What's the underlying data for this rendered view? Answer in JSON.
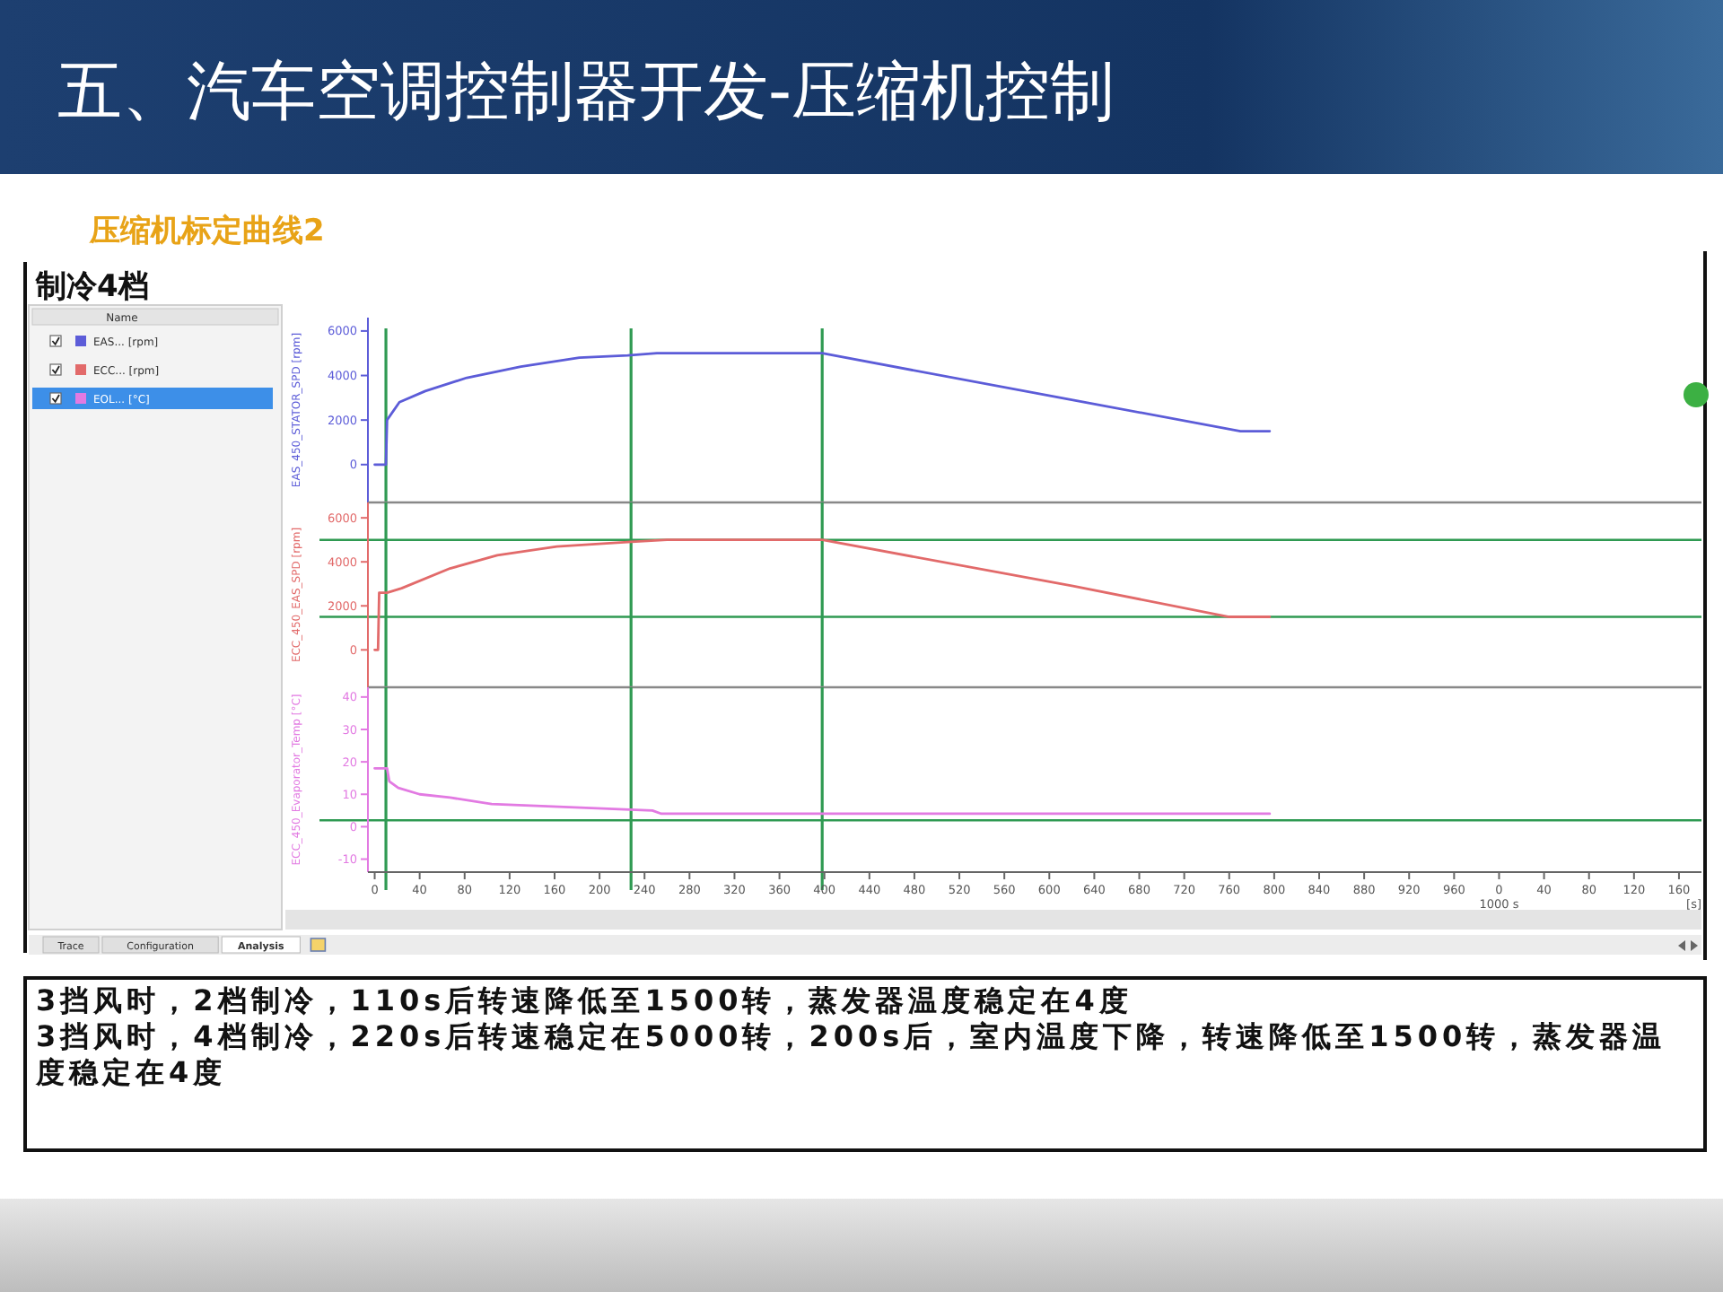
{
  "chart_data": [
    {
      "type": "line",
      "title": "五、汽车空调控制器开发-压缩机控制",
      "subtitle": "压缩机标定曲线2",
      "annotations": [
        "制冷4档"
      ],
      "legend_title": "Name",
      "legend": "left",
      "tick_labels": "y",
      "xlim": [
        -6,
        1180
      ],
      "ylim": [
        -1700,
        6600
      ],
      "yticks": [
        0,
        2000,
        4000,
        6000
      ],
      "ylabel": "EAS_450_STATOR_SPD [rpm]",
      "series": [
        {
          "name": "EAS... [rpm]",
          "color": "#5c5cd8",
          "x": [
            0,
            10,
            11,
            22,
            45,
            82,
            130,
            182,
            225,
            251,
            398,
            621,
            770,
            796
          ],
          "values": [
            0,
            0,
            2000,
            2800,
            3300,
            3900,
            4400,
            4800,
            4900,
            5000,
            5000,
            2900,
            1500,
            1500
          ]
        }
      ],
      "ref_lines": [
        {
          "axis": "x",
          "value": 10,
          "color": "#2f9a52"
        },
        {
          "axis": "x",
          "value": 228,
          "color": "#2f9a52"
        },
        {
          "axis": "x",
          "value": 398,
          "color": "#2f9a52"
        }
      ]
    },
    {
      "type": "line",
      "annotations": [
        "Trace",
        "Configuration",
        "Analysis"
      ],
      "legend": "left",
      "tick_labels": "y",
      "xlim": [
        -6,
        1180
      ],
      "ylim": [
        -1700,
        6700
      ],
      "yticks": [
        0,
        2000,
        4000,
        6000
      ],
      "ylabel": "ECC_450_EAS_SPD [rpm]",
      "series": [
        {
          "name": "ECC... [rpm]",
          "color": "#e26a6a",
          "x": [
            0,
            3,
            4,
            11,
            24,
            67,
            109,
            162,
            225,
            260,
            398,
            621,
            760,
            796
          ],
          "values": [
            0,
            0,
            2600,
            2600,
            2800,
            3700,
            4300,
            4700,
            4900,
            5000,
            5000,
            2900,
            1500,
            1500
          ]
        }
      ],
      "ref_lines": [
        {
          "axis": "x",
          "value": 10,
          "color": "#2f9a52"
        },
        {
          "axis": "x",
          "value": 228,
          "color": "#2f9a52"
        },
        {
          "axis": "x",
          "value": 398,
          "color": "#2f9a52"
        },
        {
          "axis": "y",
          "value": 5000,
          "color": "#2f9a52"
        },
        {
          "axis": "y",
          "value": 1500,
          "color": "#2f9a52"
        }
      ]
    },
    {
      "type": "line",
      "xlabel": "[s]",
      "x2label": "1000 s",
      "annotations": [
        "3挡风时，2档制冷，110s后转速降低至1500转，蒸发器温度稳定在4度",
        "3挡风时，4档制冷，220s后转速稳定在5000转，200s后，室内温度下降，转速降低至1500转，蒸发器温度稳定在4度"
      ],
      "legend": "left",
      "xlim": [
        -6,
        1180
      ],
      "xticks": [
        0,
        40,
        80,
        120,
        160,
        200,
        240,
        280,
        320,
        360,
        400,
        440,
        480,
        520,
        560,
        600,
        640,
        680,
        720,
        760,
        800,
        840,
        880,
        920,
        960
      ],
      "x2lim": [
        -1006,
        180
      ],
      "x2ticks": [
        0,
        40,
        80,
        120,
        160
      ],
      "ylim": [
        -14,
        43
      ],
      "yticks": [
        -10,
        0,
        10,
        20,
        30,
        40
      ],
      "ylabel": "ECC_450_Evaporator_Temp [°C]",
      "series": [
        {
          "name": "EOL... [°C]",
          "color": "#e27ae2",
          "x": [
            0,
            11,
            13,
            21,
            40,
            67,
            104,
            173,
            247,
            255,
            796
          ],
          "values": [
            18,
            18,
            14,
            12,
            10,
            9,
            7,
            6,
            5,
            4,
            4
          ]
        }
      ],
      "ref_lines": [
        {
          "axis": "x",
          "value": 10,
          "color": "#2f9a52"
        },
        {
          "axis": "x",
          "value": 228,
          "color": "#2f9a52"
        },
        {
          "axis": "x",
          "value": 398,
          "color": "#2f9a52"
        },
        {
          "axis": "y",
          "value": 2,
          "color": "#2f9a52"
        }
      ]
    }
  ]
}
